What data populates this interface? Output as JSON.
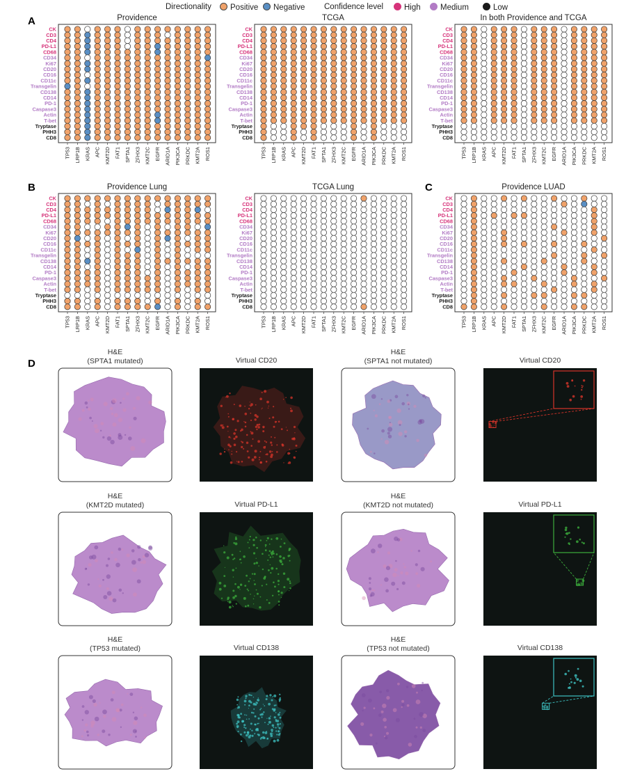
{
  "legend": {
    "directionality_title": "Directionality",
    "positive": "Positive",
    "negative": "Negative",
    "confidence_title": "Confidence level",
    "high": "High",
    "medium": "Medium",
    "low": "Low"
  },
  "colors": {
    "positive": "#f0a26a",
    "negative": "#5a8fc4",
    "none": "#ffffff",
    "high": "#d6337a",
    "medium": "#b27bc5",
    "low": "#1a1a1a"
  },
  "panel_letters": {
    "a": "A",
    "b": "B",
    "c": "C",
    "d": "D"
  },
  "markers": [
    {
      "name": "CK",
      "confidence": "high"
    },
    {
      "name": "CD3",
      "confidence": "high"
    },
    {
      "name": "CD4",
      "confidence": "high"
    },
    {
      "name": "PD-L1",
      "confidence": "high"
    },
    {
      "name": "CD68",
      "confidence": "high"
    },
    {
      "name": "CD34",
      "confidence": "medium"
    },
    {
      "name": "Ki67",
      "confidence": "medium"
    },
    {
      "name": "CD20",
      "confidence": "medium"
    },
    {
      "name": "CD16",
      "confidence": "medium"
    },
    {
      "name": "CD11c",
      "confidence": "medium"
    },
    {
      "name": "Transgelin",
      "confidence": "medium"
    },
    {
      "name": "CD138",
      "confidence": "medium"
    },
    {
      "name": "CD14",
      "confidence": "medium"
    },
    {
      "name": "PD-1",
      "confidence": "medium"
    },
    {
      "name": "Caspase3",
      "confidence": "medium"
    },
    {
      "name": "Actin",
      "confidence": "medium"
    },
    {
      "name": "T-bet",
      "confidence": "medium"
    },
    {
      "name": "Tryptase",
      "confidence": "low"
    },
    {
      "name": "PHH3",
      "confidence": "low"
    },
    {
      "name": "CD8",
      "confidence": "low"
    }
  ],
  "genes": [
    "TP53",
    "LRP1B",
    "KRAS",
    "APC",
    "KMT2D",
    "FAT1",
    "SPTA1",
    "ZFHX3",
    "KMT2C",
    "EGFR",
    "ARID1A",
    "PIK3CA",
    "PRKDC",
    "KMT2A",
    "ROS1"
  ],
  "chart_data": [
    {
      "type": "heatmap",
      "title": "Providence",
      "encoding": "rows=markers, cols=genes; P=positive, N=negative, .=none",
      "grid": [
        "PP.PPP.PPPPPPPP",
        "PPNPPP.PPP.PPPP",
        "PPNPPP.PPPPPPPP",
        "PPNPPP.PPNPPPPP",
        "PPNPPPPPPNPPPPP",
        "PP.PPPPPPPPPPPN",
        "PPNPPPPPPPPPPPP",
        "PPNPPPPPPPPPPPP",
        "PP.PPPPPPPPPPPP",
        "PPNPPPPPPPPPPPP",
        "NP.PPPPPPPPPPPP",
        "PPNPPPPPPPPPPPP",
        "PPNPPPPPPPPPPPP",
        "PPNPPPPPPPPPPPP",
        "PPNPPPPPPPPPPPP",
        "PPNPPPPPPNPPPPP",
        "PPNPPPPPPNPPPPP",
        "PPNPPPPPPPPPPPP",
        "PPNPPPPPPPPPPPP",
        "PPNPPPPPPPPPPPP"
      ]
    },
    {
      "type": "heatmap",
      "title": "TCGA",
      "grid": [
        "PPPPPPPPPPPPPPP",
        "PPPPPPPPPPPPPPP",
        "PPPPPPPPPPPPPPP",
        "PPPPPPPPPPPPPPP",
        "PPPPPPPPPPPPPPP",
        "PPPPPPPPPPPPPPP",
        "PPPPPPPPPPPPPPP",
        "PPPPPPPPPPPPPPP",
        "PPPPPPPPPPPPPPP",
        "PPPPPPPPPPPPPPP",
        "PPPPPPPPPPPPPPP",
        "PPPPPPPPPPPPPPP",
        "PPPPPPPPPPPPPPP",
        "PPPPPPPPPPPPPPP",
        "PPPPPPPPPPPPPPP",
        "PPPPPPPPPPPPPPP",
        "PPPPPPPPPPPPPPP",
        "P..PPP...P.P...",
        "P..P.P...P.P...",
        "P..P.P...P.P..."
      ]
    },
    {
      "type": "heatmap",
      "title": "In both Providence and TCGA",
      "grid": [
        "PP.PPP.PPP.PPPP",
        "PP.PPP.PPP.PPPP",
        "PP.PPP.PPP.PPPP",
        "PP.PPP.PPP.PPPP",
        "PP.PPP.PPP.PPPP",
        "PP.PPP.PPP.PPPP",
        "PP.PPP.PPP.PPPP",
        "PP.PPP.PPP.PPPP",
        "PP.PPP.PPP.PPPP",
        "PP.PPP.PPP.PPPP",
        "PP.PPP.PPP.PPPP",
        "PP.PPP.PPP.PPPP",
        "PP.PPP.PPP.PPPP",
        "PP.PPP.PPP.PPPP",
        "PP.PPP.PPP.PPPP",
        "PP.PPP.PPP.PPPP",
        "PP.PPP.PPP.PPPP",
        "...............",
        "...............",
        "..............."
      ]
    },
    {
      "type": "heatmap",
      "title": "Providence Lung",
      "grid": [
        "PPPPPPPPPPPPPPP",
        "PP.P.PPPP.PPPPP",
        "PPPPPPPPP.NPPN.",
        "PPPPPPPPPPPPPPP",
        "PPPP.PPPPPPPPPP",
        "PP..PPNP.P.PP.N",
        "PPPPPPPP.PPPPPP",
        "PN.P.P.P.PNP.PP",
        "PPPP.PPP.P.PPPP",
        "PP.P.P.N.P.P.PP",
        "PP.P.PPP.P.P...",
        "PPNP.PPP.PPPPPP",
        "PP.P.PPP.P.P.PP",
        "PPPP.PPP.P.PPPP",
        "PPPP.PPPPP.PPPP",
        "PPPP.PPPPP.PPPP",
        "PP.P.PPPPP.P.PP",
        "...............",
        "PP.P.PPP.P.P.P.",
        "PP.P.PPPPN.P.PP"
      ]
    },
    {
      "type": "heatmap",
      "title": "TCGA Lung",
      "grid": [
        "..........P....",
        "...............",
        "...............",
        "...............",
        "...............",
        "...............",
        "...............",
        "...............",
        "...............",
        "...............",
        "...............",
        "...............",
        "...............",
        "...............",
        "...............",
        "...............",
        "...............",
        "...............",
        "...............",
        "..........P...."
      ]
    },
    {
      "type": "heatmap",
      "title": "Providence LUAD",
      "grid": [
        ".P..P.P..P..P..",
        ".P........P.N..",
        ".P...........P.",
        ".P.P.PP......P.",
        ".P...........P.",
        ".P.......P...P.",
        ".P..P.....P..P.",
        ".P..P.........P",
        ".P..P.P..P..P..",
        ".P...........P.",
        ".P.......P..P.P",
        ".P..P...P...P..",
        ".P....P...P..P.",
        ".P...P....P..P.",
        ".P..P..P...P..P",
        ".P..PP..P..P.P.",
        ".P.......P...P.",
        ".P..P..PP..PP..",
        ".P.............",
        "PP..P...P..PP.."
      ]
    }
  ],
  "tissue_panels": [
    {
      "row": 1,
      "items": [
        {
          "label": "H&E\n(SPTA1 mutated)",
          "kind": "he"
        },
        {
          "label": "Virtual CD20",
          "kind": "virtual",
          "color": "#d6342a"
        },
        {
          "label": "H&E\n(SPTA1 not mutated)",
          "kind": "he"
        },
        {
          "label": "Virtual CD20",
          "kind": "virtual",
          "color": "#d6342a"
        }
      ]
    },
    {
      "row": 2,
      "items": [
        {
          "label": "H&E\n(KMT2D mutated)",
          "kind": "he"
        },
        {
          "label": "Virtual PD-L1",
          "kind": "virtual",
          "color": "#3cae3c"
        },
        {
          "label": "H&E\n(KMT2D not mutated)",
          "kind": "he"
        },
        {
          "label": "Virtual PD-L1",
          "kind": "virtual",
          "color": "#3cae3c"
        }
      ]
    },
    {
      "row": 3,
      "items": [
        {
          "label": "H&E\n(TP53 mutated)",
          "kind": "he"
        },
        {
          "label": "Virtual CD138",
          "kind": "virtual",
          "color": "#3ec2c2"
        },
        {
          "label": "H&E\n(TP53 not mutated)",
          "kind": "he"
        },
        {
          "label": "Virtual CD138",
          "kind": "virtual",
          "color": "#3ec2c2"
        }
      ]
    }
  ]
}
